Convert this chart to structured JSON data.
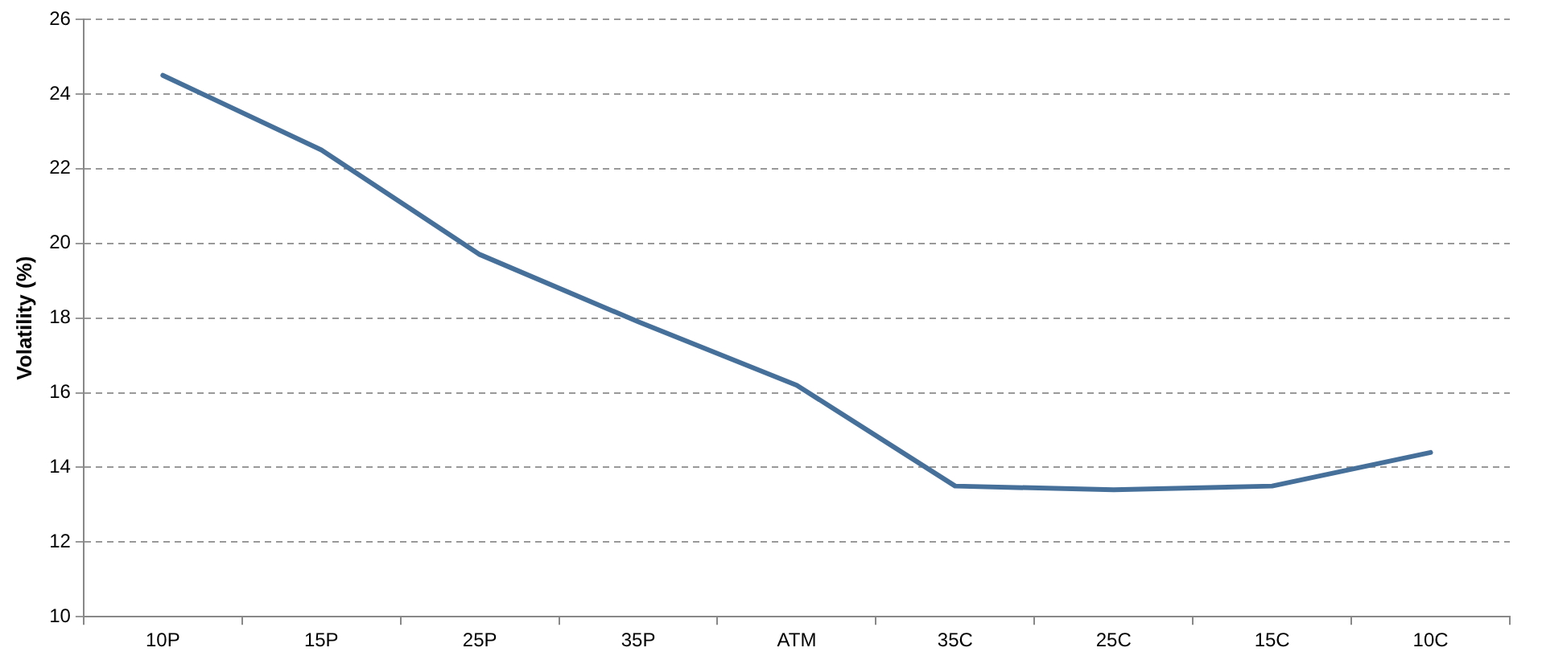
{
  "chart_data": {
    "type": "line",
    "ylabel": "Volatility (%)",
    "categories": [
      "10P",
      "15P",
      "25P",
      "35P",
      "ATM",
      "35C",
      "25C",
      "15C",
      "10C"
    ],
    "series": [
      {
        "color": "#46709a",
        "values": [
          24.5,
          22.5,
          19.7,
          17.9,
          16.2,
          13.5,
          13.4,
          13.5,
          14.4
        ]
      }
    ],
    "ylim": [
      10,
      26
    ],
    "yticks": [
      10,
      12,
      14,
      16,
      18,
      20,
      22,
      24,
      26
    ],
    "grid": "y",
    "legend": false,
    "marker": "none",
    "line_style": "solid"
  }
}
